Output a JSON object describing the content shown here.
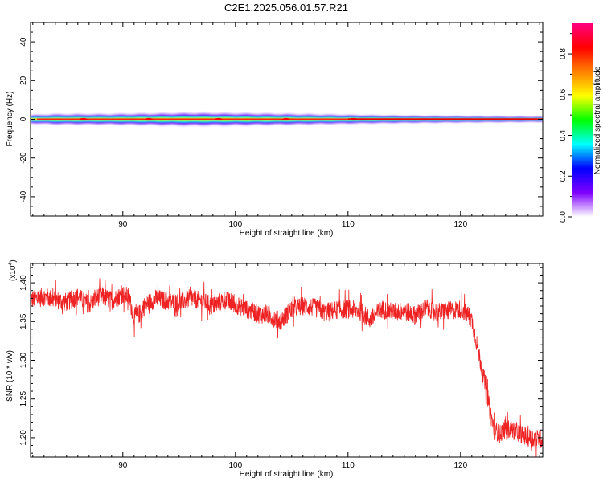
{
  "title": "C2E1.2025.056.01.57.R21",
  "chart_data": [
    {
      "type": "heatmap",
      "xlabel": "Height of straight line (km)",
      "ylabel": "Frequency (Hz)",
      "xlim": [
        81.8,
        127.3
      ],
      "ylim": [
        -50,
        50
      ],
      "xticks": [
        "90",
        "100",
        "110",
        "120"
      ],
      "yticks": [
        "-40",
        "-20",
        "0",
        "20",
        "40"
      ],
      "band": {
        "center_hz": 0,
        "halfwidth_hz": [
          [
            81.8,
            2.5
          ],
          [
            84,
            3.0
          ],
          [
            88,
            3.0
          ],
          [
            92,
            3.3
          ],
          [
            96,
            3.7
          ],
          [
            100,
            3.5
          ],
          [
            104,
            3.2
          ],
          [
            108,
            2.8
          ],
          [
            112,
            2.4
          ],
          [
            116,
            2.1
          ],
          [
            120,
            1.9
          ],
          [
            124,
            1.7
          ],
          [
            127.3,
            1.6
          ]
        ]
      },
      "peak_spots_km": [
        86.5,
        92.3,
        98.5,
        104.5,
        110.5
      ],
      "colorbar": {
        "label": "Normalized spectral amplitude",
        "range": [
          0,
          0.95
        ],
        "ticks": [
          "0.0",
          "0.2",
          "0.4",
          "0.6",
          "0.8"
        ],
        "colors": [
          "#ffffff",
          "#7f00ff",
          "#0000ff",
          "#00ffff",
          "#00ff00",
          "#ffff00",
          "#ff8000",
          "#ff0000",
          "#ff0080"
        ]
      },
      "grid": false
    },
    {
      "type": "line",
      "xlabel": "Height of straight line (km)",
      "ylabel": "SNR (10 * v/v)",
      "multiplier_label": "(x10",
      "multiplier_exp": "4",
      "xlim": [
        81.8,
        127.3
      ],
      "ylim": [
        1.175,
        1.425
      ],
      "xticks": [
        "90",
        "100",
        "110",
        "120"
      ],
      "yticks": [
        "1.20",
        "1.25",
        "1.30",
        "1.35",
        "1.40"
      ],
      "line_color": "#ee2222",
      "series": [
        {
          "x": [
            81.8,
            83,
            84,
            85,
            86,
            87,
            88,
            89,
            90,
            90.5,
            91,
            91.5,
            92,
            93,
            94,
            95,
            96,
            97,
            98,
            99,
            100,
            101,
            102,
            103,
            104,
            105,
            106,
            107,
            108,
            109,
            110,
            111,
            112,
            113,
            114,
            115,
            116,
            117,
            118,
            119,
            120,
            120.5,
            121,
            121.5,
            122,
            122.3,
            122.6,
            123,
            123.5,
            124,
            125,
            126,
            127.3
          ],
          "values": [
            1.378,
            1.382,
            1.378,
            1.375,
            1.382,
            1.372,
            1.384,
            1.377,
            1.385,
            1.382,
            1.356,
            1.36,
            1.372,
            1.38,
            1.376,
            1.374,
            1.38,
            1.377,
            1.37,
            1.378,
            1.372,
            1.366,
            1.36,
            1.358,
            1.35,
            1.366,
            1.37,
            1.368,
            1.362,
            1.365,
            1.366,
            1.364,
            1.352,
            1.366,
            1.362,
            1.364,
            1.358,
            1.368,
            1.362,
            1.364,
            1.366,
            1.362,
            1.352,
            1.318,
            1.282,
            1.262,
            1.235,
            1.21,
            1.205,
            1.212,
            1.208,
            1.2,
            1.198
          ],
          "noise_amplitude": 0.012
        }
      ],
      "grid": false
    }
  ]
}
